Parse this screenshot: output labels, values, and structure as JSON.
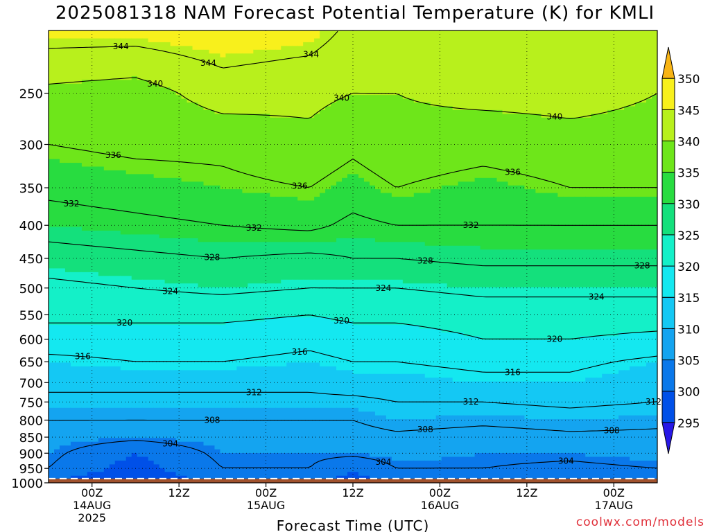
{
  "chart_data": {
    "type": "heatmap",
    "title": "2025081318 NAM Forecast Potential Temperature (K) for KMLI",
    "xlabel": "Forecast Time (UTC)",
    "ylabel": "",
    "y_scale": "log",
    "y_reversed": true,
    "ylim": [
      1000,
      200
    ],
    "xlim": [
      "2025-08-13 18Z",
      "2025-08-17 06Z"
    ],
    "y_ticks": [
      250,
      300,
      350,
      400,
      450,
      500,
      550,
      600,
      650,
      700,
      750,
      800,
      850,
      900,
      950,
      1000
    ],
    "x_ticks": [
      {
        "time": "2025-08-14 00Z",
        "lines": [
          "00Z",
          "14AUG",
          "2025"
        ]
      },
      {
        "time": "2025-08-14 12Z",
        "lines": [
          "12Z"
        ]
      },
      {
        "time": "2025-08-15 00Z",
        "lines": [
          "00Z",
          "15AUG"
        ]
      },
      {
        "time": "2025-08-15 12Z",
        "lines": [
          "12Z"
        ]
      },
      {
        "time": "2025-08-16 00Z",
        "lines": [
          "00Z",
          "16AUG"
        ]
      },
      {
        "time": "2025-08-16 12Z",
        "lines": [
          "12Z"
        ]
      },
      {
        "time": "2025-08-17 00Z",
        "lines": [
          "00Z",
          "17AUG"
        ]
      }
    ],
    "grid": true,
    "colorbar": {
      "levels": [
        295,
        300,
        305,
        310,
        315,
        320,
        325,
        330,
        335,
        340,
        345,
        350
      ],
      "labels": [
        "295",
        "300",
        "305",
        "310",
        "315",
        "320",
        "325",
        "330",
        "335",
        "340",
        "345",
        "350"
      ],
      "colors": [
        "#2818e6",
        "#0050e8",
        "#0a78ea",
        "#14a4f0",
        "#14c8f4",
        "#14e8f0",
        "#14f0c8",
        "#14e07c",
        "#28dc40",
        "#6ee61a",
        "#b8f01c",
        "#f8f01c",
        "#f8b414"
      ],
      "placement": "right"
    },
    "contour_levels": [
      {
        "value": 304,
        "label": "304"
      },
      {
        "value": 308,
        "label": "308"
      },
      {
        "value": 312,
        "label": "312"
      },
      {
        "value": 316,
        "label": "316"
      },
      {
        "value": 320,
        "label": "320"
      },
      {
        "value": 324,
        "label": "324"
      },
      {
        "value": 328,
        "label": "328"
      },
      {
        "value": 332,
        "label": "332"
      },
      {
        "value": 336,
        "label": "336"
      },
      {
        "value": 340,
        "label": "340"
      },
      {
        "value": 344,
        "label": "344"
      }
    ],
    "profiles": [
      {
        "time": "2025-08-13 18Z",
        "points": [
          [
            1000,
            299
          ],
          [
            950,
            304
          ],
          [
            900,
            305
          ],
          [
            850,
            306
          ],
          [
            800,
            308
          ],
          [
            750,
            311
          ],
          [
            700,
            313
          ],
          [
            650,
            315
          ],
          [
            600,
            318
          ],
          [
            550,
            321
          ],
          [
            500,
            323
          ],
          [
            450,
            326
          ],
          [
            400,
            330
          ],
          [
            350,
            333
          ],
          [
            300,
            336
          ],
          [
            250,
            339
          ],
          [
            200,
            346
          ]
        ]
      },
      {
        "time": "2025-08-14 06Z",
        "points": [
          [
            1000,
            296
          ],
          [
            950,
            298
          ],
          [
            900,
            300
          ],
          [
            850,
            305
          ],
          [
            800,
            308
          ],
          [
            750,
            311
          ],
          [
            700,
            313
          ],
          [
            650,
            316
          ],
          [
            600,
            318
          ],
          [
            550,
            321
          ],
          [
            500,
            324
          ],
          [
            450,
            327
          ],
          [
            400,
            331
          ],
          [
            350,
            334
          ],
          [
            300,
            337
          ],
          [
            250,
            338
          ],
          [
            200,
            346
          ]
        ]
      },
      {
        "time": "2025-08-14 18Z",
        "points": [
          [
            1000,
            301
          ],
          [
            950,
            304
          ],
          [
            900,
            305
          ],
          [
            850,
            306
          ],
          [
            800,
            308
          ],
          [
            750,
            311
          ],
          [
            700,
            313
          ],
          [
            650,
            316
          ],
          [
            600,
            318
          ],
          [
            550,
            321
          ],
          [
            500,
            325
          ],
          [
            450,
            328
          ],
          [
            400,
            332
          ],
          [
            350,
            335
          ],
          [
            300,
            337
          ],
          [
            250,
            342
          ],
          [
            200,
            347
          ]
        ]
      },
      {
        "time": "2025-08-15 06Z",
        "points": [
          [
            1000,
            301
          ],
          [
            950,
            304
          ],
          [
            900,
            305
          ],
          [
            850,
            306
          ],
          [
            800,
            308
          ],
          [
            750,
            311
          ],
          [
            700,
            313
          ],
          [
            650,
            315
          ],
          [
            600,
            317
          ],
          [
            550,
            320
          ],
          [
            500,
            324
          ],
          [
            450,
            327
          ],
          [
            400,
            333
          ],
          [
            350,
            336
          ],
          [
            300,
            339
          ],
          [
            250,
            341
          ],
          [
            200,
            346
          ]
        ]
      },
      {
        "time": "2025-08-15 12Z",
        "points": [
          [
            1000,
            298
          ],
          [
            950,
            300
          ],
          [
            900,
            305
          ],
          [
            850,
            306
          ],
          [
            800,
            308
          ],
          [
            750,
            311
          ],
          [
            700,
            314
          ],
          [
            650,
            316
          ],
          [
            600,
            318
          ],
          [
            550,
            321
          ],
          [
            500,
            324
          ],
          [
            450,
            328
          ],
          [
            400,
            331
          ],
          [
            350,
            334
          ],
          [
            300,
            337
          ],
          [
            250,
            340
          ],
          [
            200,
            343
          ]
        ]
      },
      {
        "time": "2025-08-15 18Z",
        "points": [
          [
            1000,
            301
          ],
          [
            950,
            304
          ],
          [
            900,
            306
          ],
          [
            850,
            307
          ],
          [
            800,
            310
          ],
          [
            750,
            312
          ],
          [
            700,
            314
          ],
          [
            650,
            316
          ],
          [
            600,
            318
          ],
          [
            550,
            321
          ],
          [
            500,
            324
          ],
          [
            450,
            328
          ],
          [
            400,
            332
          ],
          [
            350,
            336
          ],
          [
            300,
            339
          ],
          [
            250,
            340
          ],
          [
            200,
            343
          ]
        ]
      },
      {
        "time": "2025-08-16 06Z",
        "points": [
          [
            1000,
            302
          ],
          [
            950,
            304
          ],
          [
            900,
            305
          ],
          [
            850,
            306
          ],
          [
            800,
            309
          ],
          [
            750,
            312
          ],
          [
            700,
            315
          ],
          [
            650,
            317
          ],
          [
            600,
            320
          ],
          [
            550,
            322
          ],
          [
            500,
            325
          ],
          [
            450,
            329
          ],
          [
            400,
            332
          ],
          [
            350,
            334
          ],
          [
            300,
            338
          ],
          [
            250,
            341
          ],
          [
            200,
            344
          ]
        ]
      },
      {
        "time": "2025-08-16 18Z",
        "points": [
          [
            1000,
            300
          ],
          [
            950,
            303
          ],
          [
            900,
            305
          ],
          [
            850,
            307
          ],
          [
            800,
            310
          ],
          [
            750,
            313
          ],
          [
            700,
            315
          ],
          [
            650,
            317
          ],
          [
            600,
            320
          ],
          [
            550,
            322
          ],
          [
            500,
            325
          ],
          [
            450,
            329
          ],
          [
            400,
            332
          ],
          [
            350,
            336
          ],
          [
            300,
            339
          ],
          [
            250,
            341
          ],
          [
            200,
            343
          ]
        ]
      },
      {
        "time": "2025-08-17 06Z",
        "points": [
          [
            1000,
            301
          ],
          [
            950,
            304
          ],
          [
            900,
            306
          ],
          [
            850,
            307
          ],
          [
            800,
            309
          ],
          [
            750,
            312
          ],
          [
            700,
            313
          ],
          [
            650,
            315
          ],
          [
            600,
            319
          ],
          [
            550,
            322
          ],
          [
            500,
            325
          ],
          [
            450,
            329
          ],
          [
            400,
            332
          ],
          [
            350,
            336
          ],
          [
            300,
            339
          ],
          [
            250,
            340
          ],
          [
            200,
            343
          ]
        ]
      }
    ],
    "surface": {
      "pressure": 985,
      "color": "#a0522d"
    }
  },
  "credit": "coolwx.com/models"
}
